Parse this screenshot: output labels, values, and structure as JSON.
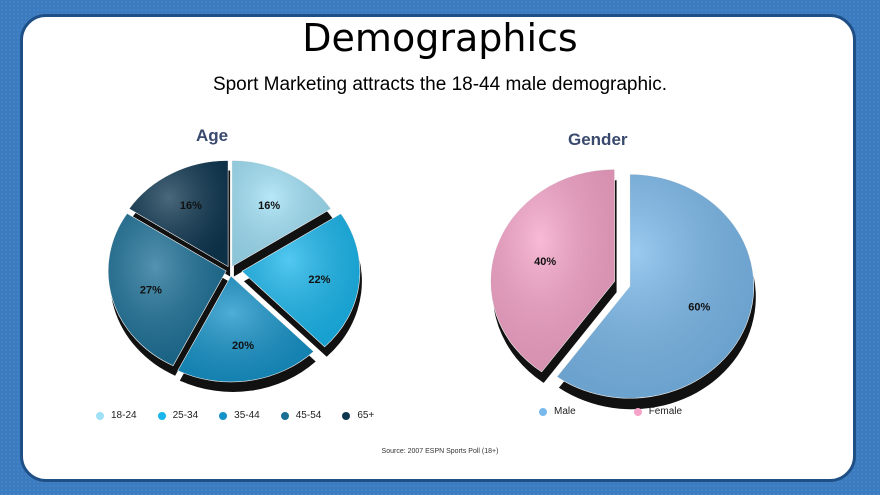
{
  "slide": {
    "title": "Demographics",
    "subtitle": "Sport Marketing attracts the 18-44 male demographic.",
    "source": "Source: 2007 ESPN Sports Poll (18+)"
  },
  "chart_data": [
    {
      "type": "pie",
      "title": "Age",
      "categories": [
        "18-24",
        "25-34",
        "35-44",
        "45-54",
        "65+"
      ],
      "values": [
        16,
        22,
        20,
        27,
        16
      ],
      "labels": [
        "16%",
        "22%",
        "20%",
        "27%",
        "16%"
      ],
      "colors": [
        "#9fe0f6",
        "#19b6ec",
        "#1592c8",
        "#1b6f96",
        "#0e3650"
      ],
      "exploded": true,
      "legend": "bottom"
    },
    {
      "type": "pie",
      "title": "Gender",
      "categories": [
        "Male",
        "Female"
      ],
      "values": [
        60,
        40
      ],
      "labels": [
        "60%",
        "40%"
      ],
      "colors": [
        "#79b8ea",
        "#f5a3c8"
      ],
      "exploded": true,
      "legend": "bottom"
    }
  ]
}
